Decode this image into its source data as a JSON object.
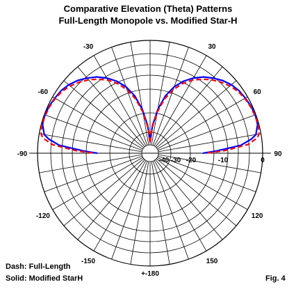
{
  "title": "Comparative Elevation (Theta) Patterns",
  "subtitle": "Full-Length Monopole vs. Modified Star-H",
  "legend_dash": "Dash:  Full-Length",
  "legend_solid": "Solid: Modified StarH",
  "figure_label": "Fig. 4",
  "colors": {
    "solid_series": "#0000ff",
    "dash_series": "#ff0000",
    "grid": "#000000"
  },
  "chart_data": {
    "type": "line",
    "coordinate_system": "polar",
    "angle_tick_labels": [
      "+-180",
      "-150",
      "-120",
      "-90",
      "-60",
      "-30",
      "30",
      "60",
      "90",
      "120",
      "150"
    ],
    "angle_ticks": [
      180,
      -150,
      -120,
      -90,
      -60,
      -30,
      30,
      60,
      90,
      120,
      150
    ],
    "radial_tick_labels": [
      "0",
      "-10",
      "-20",
      "-30",
      "-40"
    ],
    "radial_ticks_db": [
      0,
      -10,
      -20,
      -30,
      -40
    ],
    "radial_range_db": [
      -40,
      0
    ],
    "grid": true,
    "series": [
      {
        "name": "Modified StarH",
        "style": "solid",
        "theta_deg": [
          0,
          5,
          10,
          15,
          20,
          25,
          30,
          35,
          40,
          45,
          50,
          55,
          60,
          65,
          70,
          75,
          80,
          82,
          85,
          88,
          90
        ],
        "gain_db": [
          -40,
          -24,
          -16,
          -11,
          -8,
          -6,
          -4.5,
          -3.3,
          -2.4,
          -1.6,
          -1,
          -0.6,
          -0.4,
          -0.2,
          -0.1,
          -0.2,
          -0.8,
          -1.6,
          -3.6,
          -9,
          -13
        ],
        "mirrored": true
      },
      {
        "name": "Full-Length",
        "style": "dash",
        "theta_deg": [
          0,
          5,
          10,
          15,
          20,
          25,
          30,
          35,
          40,
          45,
          50,
          55,
          60,
          65,
          70,
          75,
          80,
          82,
          85,
          88,
          90
        ],
        "gain_db": [
          -40,
          -25,
          -17,
          -12,
          -8.8,
          -6.6,
          -5,
          -3.8,
          -2.8,
          -2,
          -1.3,
          -0.8,
          -0.5,
          -0.3,
          -0.2,
          -0.1,
          -0.3,
          -0.7,
          -2.4,
          -7,
          -12
        ],
        "mirrored": true
      }
    ]
  }
}
